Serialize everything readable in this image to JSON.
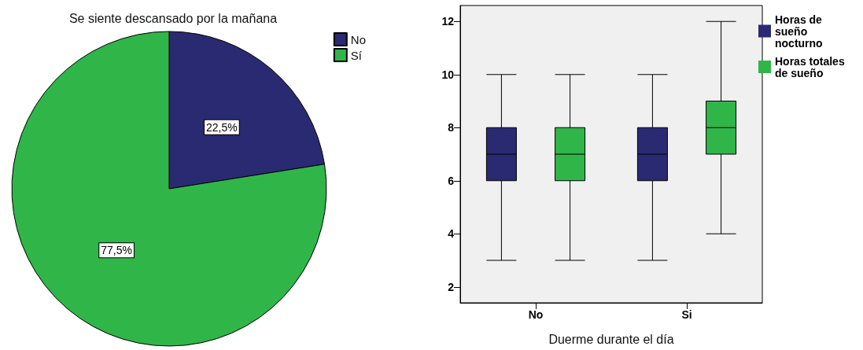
{
  "chart_data": [
    {
      "type": "pie",
      "title": "Se siente descansado por la mañana",
      "categories": [
        "No",
        "Sí"
      ],
      "values": [
        22.5,
        77.5
      ],
      "colors": [
        "#2a2a72",
        "#30b549"
      ],
      "value_labels": [
        "22,5%",
        "77,5%"
      ],
      "legend": "top right"
    },
    {
      "type": "box",
      "xlabel": "Duerme durante el día",
      "categories": [
        "No",
        "Si"
      ],
      "ylim": [
        1.4,
        12.6
      ],
      "yticks": [
        2,
        4,
        6,
        8,
        10,
        12
      ],
      "grid": false,
      "legend": "top right",
      "series": [
        {
          "name": "Horas de sueño nocturno",
          "color": "#2a2a72",
          "boxes": [
            {
              "low": 3,
              "q1": 6,
              "median": 7,
              "q3": 8,
              "high": 10
            },
            {
              "low": 3,
              "q1": 6,
              "median": 7,
              "q3": 8,
              "high": 10
            }
          ]
        },
        {
          "name": "Horas totales de sueño",
          "color": "#30b549",
          "boxes": [
            {
              "low": 3,
              "q1": 6,
              "median": 7,
              "q3": 8,
              "high": 10
            },
            {
              "low": 4,
              "q1": 7,
              "median": 8,
              "q3": 9,
              "high": 12
            }
          ]
        }
      ]
    }
  ]
}
